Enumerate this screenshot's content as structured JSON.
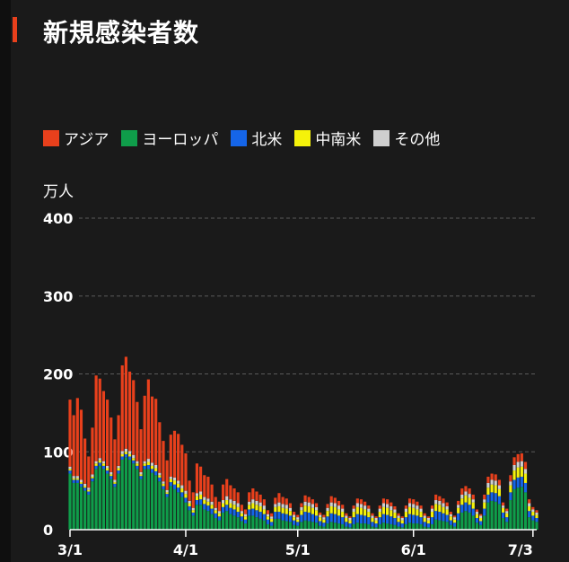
{
  "title": "新規感染者数",
  "unit_label": "万人",
  "colors": {
    "background": "#1a1a1a",
    "accent": "#e8401c",
    "grid": "#5a5a5a"
  },
  "legend": [
    {
      "label": "アジア",
      "color": "#e8401c"
    },
    {
      "label": "ヨーロッパ",
      "color": "#0f9d4a"
    },
    {
      "label": "北米",
      "color": "#1565e8"
    },
    {
      "label": "中南米",
      "color": "#f5f20a"
    },
    {
      "label": "その他",
      "color": "#cfcfcf"
    }
  ],
  "chart_data": {
    "type": "bar",
    "stacked": true,
    "xlabel": "",
    "ylabel": "万人",
    "ylim": [
      0,
      400
    ],
    "yticks": [
      0,
      100,
      200,
      300,
      400
    ],
    "xtick_labels": [
      "3/1",
      "4/1",
      "5/1",
      "6/1",
      "7/3"
    ],
    "xtick_day_index": [
      0,
      31,
      61,
      92,
      124
    ],
    "grid": true,
    "legend_position": "top-left",
    "series_names": [
      "アジア",
      "ヨーロッパ",
      "北米",
      "中南米",
      "その他"
    ],
    "start_date": "3/1",
    "days": [
      [
        86,
        72,
        4,
        2,
        3
      ],
      [
        78,
        60,
        4,
        2,
        3
      ],
      [
        100,
        60,
        4,
        2,
        3
      ],
      [
        90,
        55,
        4,
        2,
        3
      ],
      [
        58,
        50,
        4,
        2,
        3
      ],
      [
        40,
        45,
        4,
        2,
        3
      ],
      [
        60,
        62,
        4,
        2,
        3
      ],
      [
        110,
        78,
        4,
        3,
        3
      ],
      [
        102,
        82,
        4,
        3,
        3
      ],
      [
        90,
        78,
        4,
        3,
        3
      ],
      [
        85,
        72,
        4,
        3,
        3
      ],
      [
        70,
        65,
        4,
        2,
        3
      ],
      [
        52,
        55,
        4,
        2,
        3
      ],
      [
        65,
        72,
        4,
        3,
        3
      ],
      [
        110,
        90,
        4,
        3,
        4
      ],
      [
        118,
        93,
        4,
        3,
        4
      ],
      [
        102,
        90,
        4,
        3,
        4
      ],
      [
        96,
        85,
        4,
        3,
        4
      ],
      [
        76,
        78,
        4,
        3,
        3
      ],
      [
        55,
        65,
        4,
        2,
        3
      ],
      [
        84,
        78,
        4,
        3,
        3
      ],
      [
        102,
        78,
        5,
        4,
        4
      ],
      [
        85,
        73,
        5,
        4,
        4
      ],
      [
        85,
        70,
        5,
        4,
        4
      ],
      [
        65,
        62,
        5,
        3,
        3
      ],
      [
        52,
        52,
        4,
        3,
        3
      ],
      [
        38,
        42,
        4,
        2,
        3
      ],
      [
        54,
        56,
        5,
        4,
        3
      ],
      [
        60,
        52,
        6,
        5,
        4
      ],
      [
        60,
        48,
        6,
        5,
        4
      ],
      [
        52,
        42,
        6,
        5,
        4
      ],
      [
        48,
        35,
        6,
        5,
        4
      ],
      [
        26,
        25,
        5,
        4,
        3
      ],
      [
        20,
        18,
        4,
        3,
        3
      ],
      [
        38,
        32,
        6,
        5,
        4
      ],
      [
        32,
        32,
        7,
        6,
        4
      ],
      [
        28,
        26,
        7,
        5,
        4
      ],
      [
        28,
        24,
        7,
        5,
        4
      ],
      [
        22,
        20,
        7,
        5,
        4
      ],
      [
        14,
        15,
        6,
        4,
        3
      ],
      [
        12,
        12,
        5,
        4,
        3
      ],
      [
        20,
        22,
        7,
        5,
        4
      ],
      [
        22,
        24,
        8,
        6,
        5
      ],
      [
        18,
        20,
        8,
        6,
        5
      ],
      [
        16,
        18,
        8,
        6,
        5
      ],
      [
        14,
        16,
        7,
        6,
        5
      ],
      [
        8,
        11,
        6,
        4,
        3
      ],
      [
        6,
        8,
        5,
        4,
        3
      ],
      [
        12,
        18,
        8,
        6,
        4
      ],
      [
        14,
        18,
        9,
        7,
        5
      ],
      [
        12,
        16,
        9,
        7,
        5
      ],
      [
        10,
        14,
        9,
        7,
        5
      ],
      [
        8,
        12,
        8,
        6,
        5
      ],
      [
        5,
        7,
        6,
        4,
        3
      ],
      [
        4,
        5,
        5,
        4,
        3
      ],
      [
        8,
        14,
        9,
        6,
        4
      ],
      [
        12,
        14,
        9,
        7,
        5
      ],
      [
        9,
        12,
        9,
        7,
        5
      ],
      [
        8,
        11,
        9,
        7,
        5
      ],
      [
        6,
        10,
        8,
        6,
        4
      ],
      [
        4,
        6,
        6,
        4,
        3
      ],
      [
        3,
        5,
        5,
        3,
        3
      ],
      [
        5,
        10,
        9,
        6,
        4
      ],
      [
        8,
        12,
        11,
        8,
        5
      ],
      [
        7,
        11,
        11,
        8,
        5
      ],
      [
        6,
        10,
        10,
        8,
        5
      ],
      [
        5,
        9,
        9,
        7,
        4
      ],
      [
        3,
        5,
        6,
        5,
        3
      ],
      [
        3,
        4,
        5,
        4,
        3
      ],
      [
        5,
        8,
        9,
        7,
        4
      ],
      [
        8,
        10,
        11,
        9,
        5
      ],
      [
        7,
        9,
        11,
        9,
        5
      ],
      [
        6,
        8,
        10,
        8,
        5
      ],
      [
        5,
        7,
        9,
        7,
        4
      ],
      [
        3,
        4,
        6,
        5,
        3
      ],
      [
        2,
        3,
        5,
        4,
        3
      ],
      [
        4,
        7,
        9,
        7,
        4
      ],
      [
        6,
        9,
        11,
        9,
        5
      ],
      [
        6,
        8,
        11,
        9,
        5
      ],
      [
        5,
        8,
        10,
        8,
        5
      ],
      [
        4,
        7,
        9,
        7,
        4
      ],
      [
        3,
        4,
        6,
        5,
        3
      ],
      [
        2,
        3,
        5,
        4,
        3
      ],
      [
        4,
        7,
        9,
        7,
        4
      ],
      [
        6,
        9,
        11,
        9,
        5
      ],
      [
        6,
        8,
        11,
        9,
        5
      ],
      [
        5,
        7,
        10,
        8,
        5
      ],
      [
        4,
        6,
        9,
        7,
        4
      ],
      [
        3,
        4,
        6,
        5,
        3
      ],
      [
        2,
        3,
        5,
        4,
        3
      ],
      [
        4,
        7,
        9,
        7,
        4
      ],
      [
        6,
        9,
        11,
        9,
        5
      ],
      [
        6,
        8,
        11,
        9,
        5
      ],
      [
        5,
        8,
        10,
        8,
        5
      ],
      [
        4,
        7,
        9,
        7,
        4
      ],
      [
        3,
        4,
        6,
        5,
        3
      ],
      [
        2,
        3,
        5,
        4,
        3
      ],
      [
        4,
        7,
        9,
        7,
        4
      ],
      [
        7,
        13,
        11,
        9,
        5
      ],
      [
        6,
        12,
        11,
        9,
        5
      ],
      [
        6,
        11,
        10,
        8,
        5
      ],
      [
        5,
        10,
        9,
        7,
        4
      ],
      [
        3,
        6,
        6,
        5,
        3
      ],
      [
        2,
        4,
        5,
        4,
        3
      ],
      [
        5,
        12,
        9,
        7,
        4
      ],
      [
        8,
        22,
        10,
        8,
        5
      ],
      [
        7,
        24,
        11,
        9,
        5
      ],
      [
        7,
        22,
        10,
        9,
        5
      ],
      [
        6,
        18,
        9,
        8,
        4
      ],
      [
        3,
        9,
        6,
        5,
        3
      ],
      [
        2,
        6,
        5,
        4,
        3
      ],
      [
        6,
        18,
        9,
        8,
        4
      ],
      [
        8,
        35,
        10,
        9,
        6
      ],
      [
        8,
        37,
        11,
        10,
        6
      ],
      [
        8,
        36,
        11,
        10,
        6
      ],
      [
        7,
        33,
        10,
        9,
        5
      ],
      [
        4,
        15,
        7,
        6,
        3
      ],
      [
        3,
        10,
        6,
        5,
        3
      ],
      [
        8,
        38,
        10,
        9,
        5
      ],
      [
        10,
        52,
        12,
        12,
        7
      ],
      [
        10,
        54,
        13,
        13,
        7
      ],
      [
        10,
        55,
        13,
        13,
        7
      ],
      [
        9,
        48,
        12,
        12,
        6
      ],
      [
        5,
        16,
        8,
        6,
        4
      ],
      [
        3,
        12,
        6,
        5,
        3
      ],
      [
        3,
        10,
        5,
        4,
        3
      ]
    ]
  }
}
